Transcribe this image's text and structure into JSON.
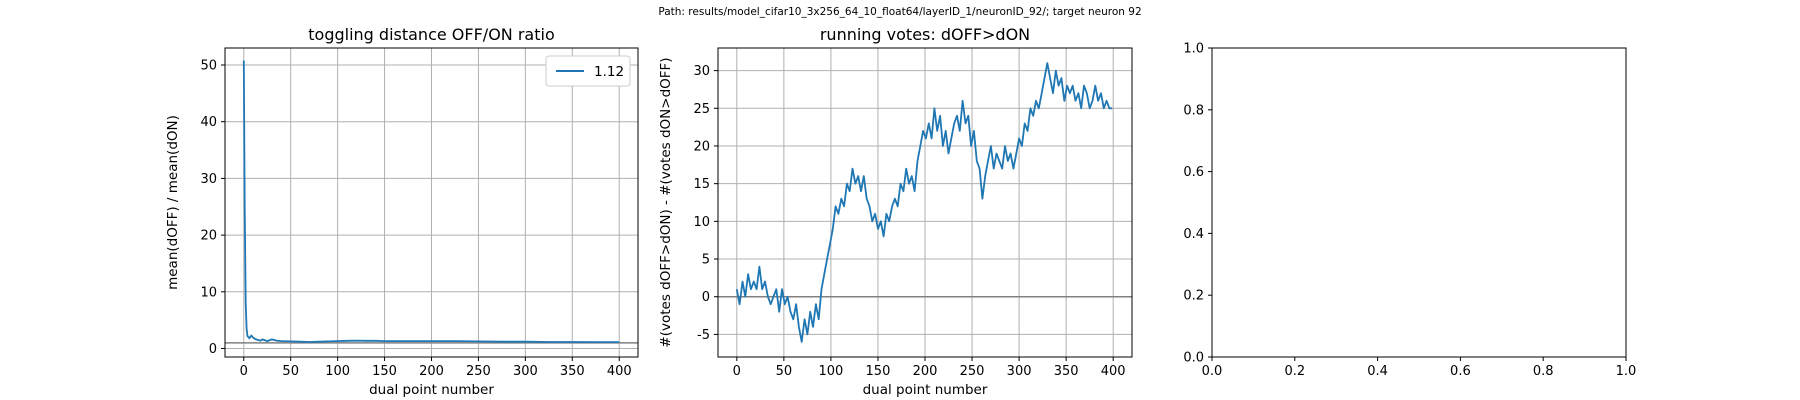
{
  "figure": {
    "suptitle": "Path: results/model_cifar10_3x256_64_10_float64/layerID_1/neuronID_92/; target neuron 92"
  },
  "colors": {
    "line": "#1f77b4",
    "grid": "#b0b0b0",
    "refline": "#808080",
    "axes": "#000000"
  },
  "chart_data": [
    {
      "type": "line",
      "title": "toggling distance OFF/ON ratio",
      "xlabel": "dual point number",
      "ylabel": "mean(dOFF) / mean(dON)",
      "xlim": [
        -20,
        420
      ],
      "ylim": [
        -1.5,
        53
      ],
      "xticks": [
        0,
        50,
        100,
        150,
        200,
        250,
        300,
        350,
        400
      ],
      "yticks": [
        0,
        10,
        20,
        30,
        40,
        50
      ],
      "grid": true,
      "legend": {
        "placement": "top-right",
        "entries": [
          "1.12"
        ]
      },
      "reference_line_y": 1.0,
      "series": [
        {
          "name": "1.12",
          "x": [
            0,
            1,
            2,
            3,
            4,
            5,
            6,
            8,
            10,
            12,
            15,
            18,
            20,
            25,
            30,
            35,
            40,
            50,
            60,
            70,
            80,
            90,
            100,
            110,
            120,
            130,
            140,
            150,
            175,
            200,
            225,
            250,
            275,
            300,
            325,
            350,
            375,
            400
          ],
          "y": [
            50.8,
            25.0,
            8.0,
            3.5,
            2.2,
            2.0,
            1.8,
            2.3,
            1.9,
            1.7,
            1.5,
            1.4,
            1.6,
            1.3,
            1.6,
            1.4,
            1.3,
            1.25,
            1.2,
            1.15,
            1.2,
            1.25,
            1.3,
            1.35,
            1.4,
            1.35,
            1.35,
            1.3,
            1.3,
            1.3,
            1.3,
            1.25,
            1.2,
            1.2,
            1.15,
            1.15,
            1.12,
            1.12
          ]
        }
      ]
    },
    {
      "type": "line",
      "title": "running votes: dOFF>dON",
      "xlabel": "dual point number",
      "ylabel": "#(votes dOFF>dON) - #(votes dON>dOFF)",
      "xlim": [
        -20,
        420
      ],
      "ylim": [
        -8,
        33
      ],
      "xticks": [
        0,
        50,
        100,
        150,
        200,
        250,
        300,
        350,
        400
      ],
      "yticks": [
        -5,
        0,
        5,
        10,
        15,
        20,
        25,
        30
      ],
      "grid": true,
      "reference_line_y": 0,
      "series": [
        {
          "x": [
            0,
            3,
            6,
            9,
            12,
            15,
            18,
            21,
            24,
            27,
            30,
            33,
            36,
            39,
            42,
            45,
            48,
            51,
            54,
            57,
            60,
            63,
            66,
            69,
            72,
            75,
            78,
            81,
            84,
            87,
            90,
            93,
            96,
            99,
            102,
            105,
            108,
            111,
            114,
            117,
            120,
            123,
            126,
            129,
            132,
            135,
            138,
            141,
            144,
            147,
            150,
            153,
            156,
            159,
            162,
            165,
            168,
            171,
            174,
            177,
            180,
            183,
            186,
            189,
            192,
            195,
            198,
            201,
            204,
            207,
            210,
            213,
            216,
            219,
            222,
            225,
            228,
            231,
            234,
            237,
            240,
            243,
            246,
            249,
            252,
            255,
            258,
            261,
            264,
            267,
            270,
            273,
            276,
            279,
            282,
            285,
            288,
            291,
            294,
            297,
            300,
            303,
            306,
            309,
            312,
            315,
            318,
            321,
            324,
            327,
            330,
            333,
            336,
            339,
            342,
            345,
            348,
            351,
            354,
            357,
            360,
            363,
            366,
            369,
            372,
            375,
            378,
            381,
            384,
            387,
            390,
            393,
            396,
            399
          ],
          "y": [
            1,
            -1,
            2,
            0,
            3,
            1,
            2,
            1,
            4,
            1,
            2,
            0,
            -1,
            0,
            1,
            -2,
            1,
            -1,
            0,
            -2,
            -3,
            -1,
            -4,
            -6,
            -3,
            -5,
            -2,
            -4,
            -1,
            -3,
            1,
            3,
            5,
            7,
            9,
            12,
            11,
            13,
            12,
            15,
            14,
            17,
            15,
            16,
            14,
            16,
            13,
            12,
            10,
            11,
            9,
            10,
            8,
            11,
            10,
            12,
            13,
            12,
            15,
            14,
            17,
            15,
            16,
            14,
            18,
            20,
            22,
            21,
            23,
            21,
            25,
            22,
            24,
            20,
            22,
            19,
            21,
            23,
            24,
            22,
            26,
            23,
            24,
            20,
            22,
            18,
            17,
            13,
            16,
            18,
            20,
            17,
            19,
            18,
            17,
            20,
            18,
            19,
            17,
            19,
            21,
            20,
            23,
            22,
            25,
            24,
            26,
            25,
            27,
            29,
            31,
            29,
            27,
            30,
            28,
            29,
            26,
            28,
            27,
            28,
            26,
            27,
            25,
            28,
            27,
            25,
            26,
            28,
            26,
            27,
            25,
            26,
            25,
            25
          ]
        }
      ]
    },
    {
      "type": "line",
      "title": "",
      "xlim": [
        0,
        1
      ],
      "ylim": [
        0,
        1
      ],
      "xticks": [
        0.0,
        0.2,
        0.4,
        0.6,
        0.8,
        1.0
      ],
      "yticks": [
        0.0,
        0.2,
        0.4,
        0.6,
        0.8,
        1.0
      ],
      "grid": false,
      "series": []
    }
  ]
}
